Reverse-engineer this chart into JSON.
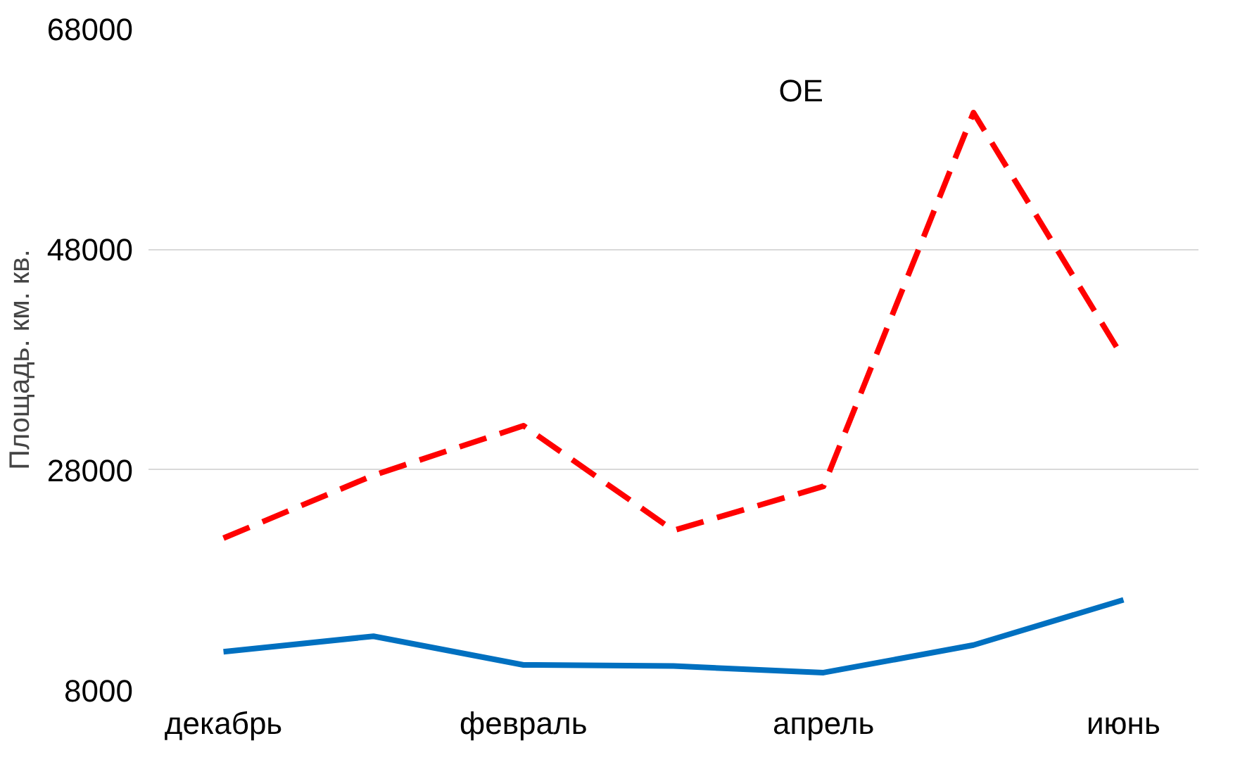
{
  "chart_data": {
    "type": "line",
    "ylabel": "Площадь. км. кв.",
    "annotations": [
      "ОЕ"
    ],
    "categories": [
      "декабрь",
      null,
      "февраль",
      null,
      "апрель",
      null,
      "июнь"
    ],
    "series": [
      {
        "color": "#ff0000",
        "line_style": "dashed",
        "values": [
          21800,
          27500,
          32000,
          22500,
          26500,
          60400,
          38100
        ]
      },
      {
        "color": "#0070c0",
        "line_style": "solid",
        "values": [
          11500,
          12900,
          10300,
          10200,
          9600,
          12100,
          16200
        ]
      }
    ],
    "ylim": [
      8000,
      68000
    ],
    "yticks": [
      8000,
      28000,
      48000,
      68000
    ],
    "grid": "y",
    "marker": "none"
  }
}
